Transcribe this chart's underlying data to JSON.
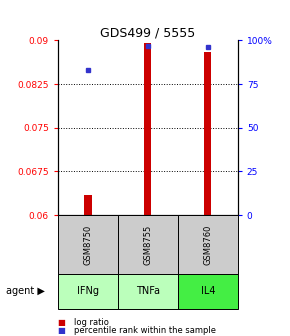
{
  "title": "GDS499 / 5555",
  "samples": [
    "GSM8750",
    "GSM8755",
    "GSM8760"
  ],
  "agents": [
    "IFNg",
    "TNFa",
    "IL4"
  ],
  "bar_values": [
    0.0635,
    0.0895,
    0.088
  ],
  "bar_base": 0.06,
  "percentile_ranks": [
    83,
    97,
    96
  ],
  "ylim_left": [
    0.06,
    0.09
  ],
  "ylim_right": [
    0,
    100
  ],
  "yticks_left": [
    0.06,
    0.0675,
    0.075,
    0.0825,
    0.09
  ],
  "yticks_right": [
    0,
    25,
    50,
    75,
    100
  ],
  "ytick_labels_left": [
    "0.06",
    "0.0675",
    "0.075",
    "0.0825",
    "0.09"
  ],
  "ytick_labels_right": [
    "0",
    "25",
    "50",
    "75",
    "100%"
  ],
  "bar_color": "#cc0000",
  "dot_color": "#3333cc",
  "agent_colors": [
    "#bbffbb",
    "#bbffbb",
    "#44ee44"
  ],
  "sample_bg_color": "#cccccc",
  "legend_bar_label": "log ratio",
  "legend_dot_label": "percentile rank within the sample",
  "agent_label": "agent",
  "figsize": [
    2.9,
    3.36
  ],
  "dpi": 100
}
